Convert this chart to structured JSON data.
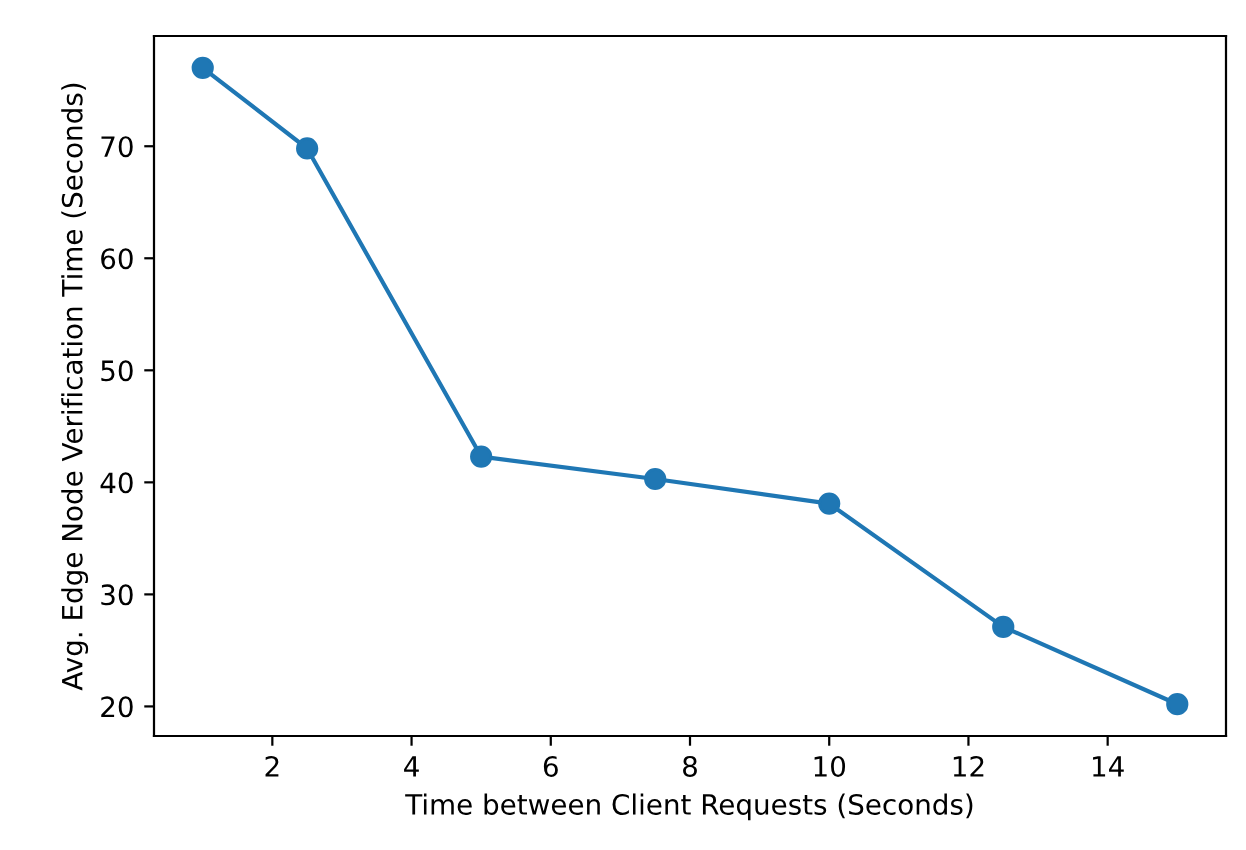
{
  "chart_data": {
    "type": "line",
    "xlabel": "Time between Client Requests (Seconds)",
    "ylabel": "Avg. Edge Node Verification Time (Seconds)",
    "x": [
      1,
      2.5,
      5,
      7.5,
      10,
      12.5,
      15
    ],
    "series": [
      {
        "color": "#1f77b4",
        "values": [
          77,
          69.8,
          42.3,
          40.3,
          38.1,
          27.1,
          20.2
        ]
      }
    ],
    "marker": "circle",
    "grid": false,
    "xlim": [
      0.3,
      15.7
    ],
    "ylim": [
      17.36,
      79.84
    ],
    "xticks": [
      2,
      4,
      6,
      8,
      10,
      12,
      14
    ],
    "yticks": [
      20,
      30,
      40,
      50,
      60,
      70
    ]
  }
}
